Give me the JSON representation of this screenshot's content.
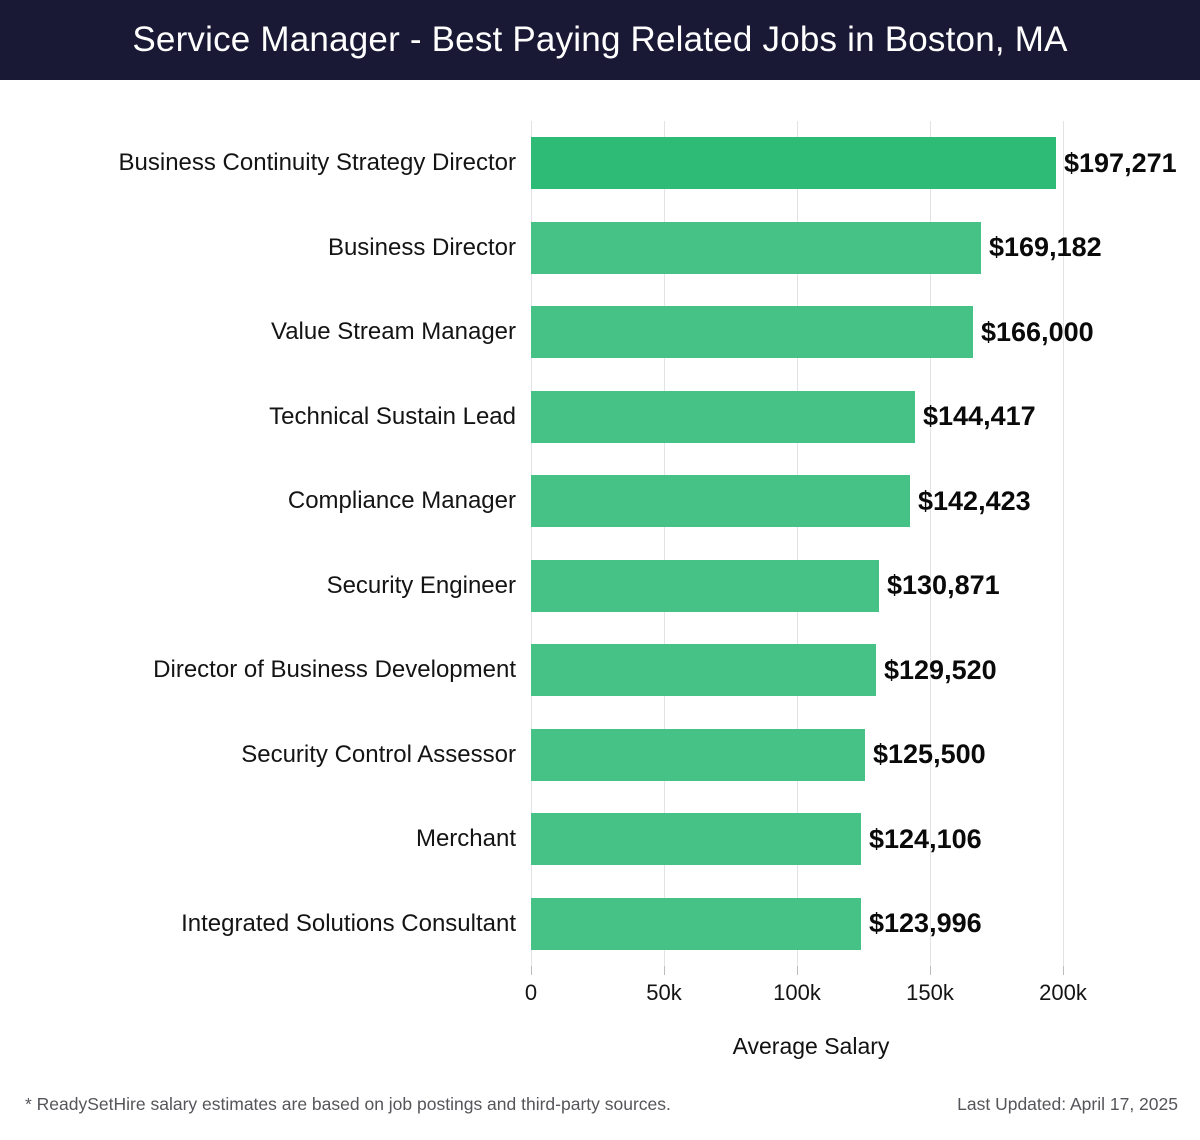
{
  "header": {
    "title": "Service Manager - Best Paying Related Jobs in Boston, MA"
  },
  "chart_data": {
    "type": "bar",
    "orientation": "horizontal",
    "title": "Service Manager - Best Paying Related Jobs in Boston, MA",
    "categories": [
      "Business Continuity Strategy Director",
      "Business Director",
      "Value Stream Manager",
      "Technical Sustain Lead",
      "Compliance Manager",
      "Security Engineer",
      "Director of Business Development",
      "Security Control Assessor",
      "Merchant",
      "Integrated Solutions Consultant"
    ],
    "values": [
      197271,
      169182,
      166000,
      144417,
      142423,
      130871,
      129520,
      125500,
      124106,
      123996
    ],
    "value_labels": [
      "$197,271",
      "$169,182",
      "$166,000",
      "$144,417",
      "$142,423",
      "$130,871",
      "$129,520",
      "$125,500",
      "$124,106",
      "$123,996"
    ],
    "xlabel": "Average Salary",
    "x_ticks": [
      "0",
      "50k",
      "100k",
      "150k",
      "200k"
    ],
    "x_tick_values": [
      0,
      50000,
      100000,
      150000,
      200000
    ],
    "xlim": [
      0,
      210500
    ],
    "grid": true,
    "legend": "none",
    "highlight_first_bar": true
  },
  "colors": {
    "header_bg": "#191935",
    "title_text": "#ffffff",
    "bar_highlight": "#2dbb75",
    "bar": "#47c287",
    "gridline": "#e3e3e7",
    "tick": "#bcbcbc",
    "footer_text": "#55555a"
  },
  "footer": {
    "note": "* ReadySetHire salary estimates are based on job postings and third-party sources.",
    "last_updated": "Last Updated: April 17, 2025"
  }
}
